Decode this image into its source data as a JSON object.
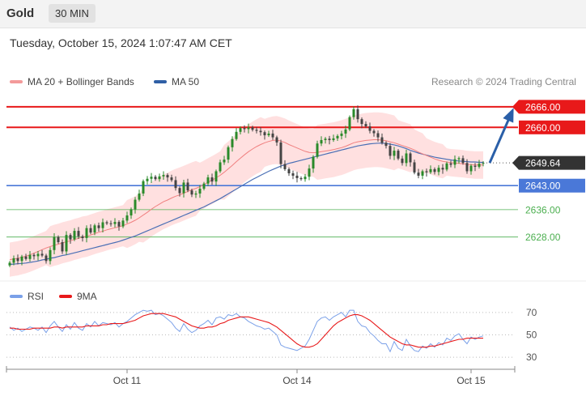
{
  "header": {
    "symbol": "Gold",
    "timeframe": "30 MIN"
  },
  "datetime": "Tuesday, October 15, 2024 1:07:47 AM CET",
  "legend": {
    "ma20": "MA 20 + Bollinger Bands",
    "ma50": "MA 50",
    "rsi": "RSI",
    "rsi_ma": "9MA"
  },
  "credit": "Research © 2024 Trading Central",
  "colors": {
    "up": "#2a8a2a",
    "down": "#444444",
    "band": "#ffd6d6",
    "ma20": "#f08080",
    "ma50": "#4a6fb5",
    "resistance": "#e8191a",
    "support_current": "#4a78d8",
    "support": "#4caf50",
    "current": "#333333",
    "arrow": "#2a5fa8",
    "rsi": "#7aa0e8",
    "rsi_ma": "#e8191a"
  },
  "chart_data": [
    {
      "type": "candlestick",
      "yrange": [
        2618,
        2670
      ],
      "current_price": "2649.64",
      "levels": [
        {
          "value": 2666.0,
          "label": "2666.00",
          "kind": "resistance"
        },
        {
          "value": 2660.0,
          "label": "2660.00",
          "kind": "resistance"
        },
        {
          "value": 2643.0,
          "label": "2643.00",
          "kind": "pivot"
        },
        {
          "value": 2636.0,
          "label": "2636.00",
          "kind": "support"
        },
        {
          "value": 2628.0,
          "label": "2628.00",
          "kind": "support"
        }
      ],
      "x_labels": [
        "Oct 11",
        "Oct 14",
        "Oct 15"
      ],
      "close": [
        2620.5,
        2621.8,
        2621.0,
        2622.3,
        2621.6,
        2622.8,
        2622.4,
        2623.1,
        2622.6,
        2621.0,
        2624.2,
        2628.0,
        2626.5,
        2623.8,
        2628.6,
        2627.3,
        2629.8,
        2628.2,
        2627.7,
        2630.6,
        2629.3,
        2631.4,
        2630.6,
        2632.3,
        2632.0,
        2631.8,
        2632.4,
        2631.1,
        2632.8,
        2634.3,
        2636.1,
        2638.9,
        2640.7,
        2644.3,
        2645.0,
        2645.6,
        2644.9,
        2645.7,
        2646.1,
        2645.4,
        2644.6,
        2642.3,
        2640.8,
        2643.9,
        2641.6,
        2640.4,
        2640.7,
        2642.1,
        2643.6,
        2645.4,
        2644.2,
        2647.2,
        2649.8,
        2650.6,
        2654.2,
        2656.6,
        2658.7,
        2659.8,
        2659.5,
        2660.0,
        2659.3,
        2659.0,
        2658.6,
        2657.7,
        2658.2,
        2657.1,
        2655.6,
        2649.3,
        2647.8,
        2646.6,
        2645.9,
        2645.2,
        2644.9,
        2645.6,
        2648.0,
        2651.4,
        2655.3,
        2656.3,
        2656.7,
        2656.3,
        2656.8,
        2657.5,
        2658.2,
        2659.4,
        2663.0,
        2665.3,
        2662.4,
        2661.0,
        2660.3,
        2659.0,
        2658.3,
        2657.1,
        2655.5,
        2654.6,
        2651.7,
        2653.2,
        2650.9,
        2649.6,
        2652.4,
        2649.8,
        2646.8,
        2645.9,
        2647.2,
        2646.9,
        2647.8,
        2647.0,
        2648.2,
        2647.7,
        2649.5,
        2649.1,
        2650.7,
        2651.0,
        2649.6,
        2647.2,
        2648.8,
        2648.5,
        2649.4,
        2649.64
      ],
      "ma20": [
        2621.4,
        2621.6,
        2621.8,
        2622.1,
        2622.4,
        2622.8,
        2623.3,
        2623.8,
        2624.3,
        2624.8,
        2625.2,
        2625.6,
        2625.9,
        2626.3,
        2626.6,
        2626.9,
        2627.3,
        2627.6,
        2628.0,
        2628.2,
        2628.6,
        2629.0,
        2629.4,
        2629.7,
        2630.1,
        2630.4,
        2630.7,
        2631.0,
        2631.3,
        2631.8,
        2632.3,
        2632.9,
        2633.6,
        2634.4,
        2635.2,
        2636.1,
        2636.9,
        2637.6,
        2638.3,
        2638.8,
        2639.4,
        2639.9,
        2640.3,
        2640.8,
        2641.3,
        2641.8,
        2642.2,
        2642.7,
        2643.3,
        2644.0,
        2644.6,
        2645.3,
        2646.0,
        2646.9,
        2647.9,
        2648.9,
        2650.0,
        2651.0,
        2652.0,
        2652.9,
        2653.7,
        2654.4,
        2655.0,
        2655.5,
        2655.9,
        2656.2,
        2656.3,
        2656.0,
        2655.6,
        2655.0,
        2654.5,
        2654.0,
        2653.5,
        2653.0,
        2652.7,
        2652.6,
        2652.7,
        2652.9,
        2653.1,
        2653.3,
        2653.5,
        2653.8,
        2654.1,
        2654.5,
        2655.0,
        2655.5,
        2655.8,
        2656.0,
        2656.2,
        2656.3,
        2656.4,
        2656.4,
        2656.3,
        2656.1,
        2655.8,
        2655.5,
        2655.1,
        2654.7,
        2654.3,
        2653.9,
        2653.4,
        2652.8,
        2652.3,
        2651.8,
        2651.3,
        2650.8,
        2650.4,
        2650.1,
        2649.9,
        2649.7,
        2649.6,
        2649.5,
        2649.4,
        2649.2,
        2649.1,
        2649.0,
        2649.0,
        2649.0
      ],
      "ma50": [
        2620.0,
        2620.1,
        2620.2,
        2620.3,
        2620.4,
        2620.6,
        2620.8,
        2621.0,
        2621.3,
        2621.5,
        2621.8,
        2622.0,
        2622.3,
        2622.6,
        2622.8,
        2623.1,
        2623.4,
        2623.7,
        2624.0,
        2624.3,
        2624.6,
        2624.9,
        2625.2,
        2625.5,
        2625.8,
        2626.1,
        2626.4,
        2626.7,
        2627.1,
        2627.5,
        2627.9,
        2628.3,
        2628.8,
        2629.3,
        2629.8,
        2630.3,
        2630.8,
        2631.3,
        2631.8,
        2632.3,
        2632.8,
        2633.3,
        2633.8,
        2634.3,
        2634.8,
        2635.3,
        2635.8,
        2636.3,
        2636.8,
        2637.4,
        2638.0,
        2638.6,
        2639.2,
        2639.9,
        2640.6,
        2641.3,
        2642.0,
        2642.7,
        2643.4,
        2644.1,
        2644.8,
        2645.4,
        2646.0,
        2646.6,
        2647.2,
        2647.7,
        2648.2,
        2648.7,
        2649.1,
        2649.5,
        2649.8,
        2650.1,
        2650.4,
        2650.7,
        2651.0,
        2651.3,
        2651.6,
        2651.9,
        2652.2,
        2652.5,
        2652.8,
        2653.1,
        2653.4,
        2653.7,
        2654.0,
        2654.3,
        2654.6,
        2654.8,
        2655.0,
        2655.2,
        2655.3,
        2655.4,
        2655.4,
        2655.3,
        2655.1,
        2654.9,
        2654.6,
        2654.2,
        2653.8,
        2653.3,
        2652.9,
        2652.5,
        2652.2,
        2651.9,
        2651.6,
        2651.3,
        2651.1,
        2650.9,
        2650.7,
        2650.5,
        2650.3,
        2650.2,
        2650.1,
        2650.0,
        2649.9,
        2649.9,
        2649.8,
        2649.8
      ],
      "band_width": [
        5,
        5,
        5,
        5,
        5,
        5,
        5,
        5,
        5,
        5,
        6,
        6,
        6,
        6,
        6,
        6,
        6,
        6,
        6,
        6,
        6,
        6,
        6,
        6,
        6,
        6,
        6,
        6,
        6,
        7,
        7,
        7,
        7,
        8,
        8,
        8,
        8,
        8,
        8,
        8,
        8,
        8,
        8,
        8,
        8,
        8,
        8,
        7,
        7,
        7,
        7,
        7,
        7,
        8,
        8,
        8,
        8,
        8,
        8,
        8,
        8,
        8,
        8,
        7,
        7,
        7,
        7,
        7,
        7,
        7,
        7,
        7,
        7,
        7,
        7,
        7,
        8,
        8,
        8,
        8,
        8,
        8,
        8,
        8,
        8,
        8,
        8,
        8,
        8,
        8,
        8,
        8,
        8,
        8,
        8,
        8,
        7,
        7,
        7,
        7,
        6,
        6,
        6,
        5,
        5,
        5,
        5,
        5,
        4,
        4,
        4,
        4,
        4,
        4,
        4,
        4,
        4,
        4
      ]
    },
    {
      "type": "line",
      "title": "RSI",
      "ylim": [
        25,
        80
      ],
      "y_ticks": [
        70,
        50,
        30
      ],
      "rsi": [
        57,
        54,
        56,
        53,
        55,
        57,
        56,
        54,
        57,
        52,
        58,
        62,
        57,
        53,
        59,
        55,
        61,
        56,
        54,
        60,
        57,
        62,
        58,
        61,
        60,
        59,
        61,
        57,
        60,
        62,
        65,
        68,
        70,
        72,
        71,
        72,
        68,
        69,
        67,
        64,
        61,
        56,
        53,
        60,
        55,
        52,
        54,
        58,
        60,
        63,
        59,
        65,
        66,
        64,
        68,
        67,
        69,
        66,
        65,
        62,
        60,
        58,
        57,
        55,
        56,
        53,
        50,
        41,
        39,
        38,
        37,
        36,
        38,
        40,
        46,
        54,
        62,
        65,
        66,
        63,
        66,
        68,
        70,
        66,
        72,
        72,
        62,
        58,
        57,
        52,
        49,
        45,
        42,
        42,
        35,
        44,
        38,
        36,
        46,
        40,
        36,
        35,
        40,
        38,
        42,
        39,
        43,
        41,
        47,
        45,
        49,
        51,
        46,
        42,
        48,
        46,
        48,
        49
      ],
      "ma9": [
        56,
        56,
        55,
        55,
        55,
        55,
        56,
        56,
        56,
        56,
        56,
        57,
        57,
        56,
        57,
        57,
        57,
        57,
        57,
        58,
        58,
        58,
        58,
        59,
        59,
        60,
        60,
        60,
        60,
        61,
        62,
        63,
        65,
        67,
        68,
        69,
        69,
        69,
        69,
        68,
        67,
        66,
        64,
        62,
        60,
        58,
        57,
        56,
        56,
        57,
        57,
        58,
        60,
        61,
        63,
        64,
        65,
        66,
        66,
        66,
        65,
        64,
        63,
        62,
        61,
        59,
        57,
        54,
        51,
        48,
        45,
        42,
        40,
        39,
        39,
        40,
        42,
        46,
        50,
        54,
        58,
        61,
        63,
        65,
        67,
        68,
        68,
        67,
        65,
        63,
        60,
        57,
        54,
        51,
        48,
        46,
        44,
        42,
        41,
        41,
        40,
        39,
        39,
        39,
        40,
        40,
        41,
        42,
        43,
        44,
        45,
        46,
        46,
        47,
        47,
        47,
        47,
        47
      ]
    }
  ]
}
